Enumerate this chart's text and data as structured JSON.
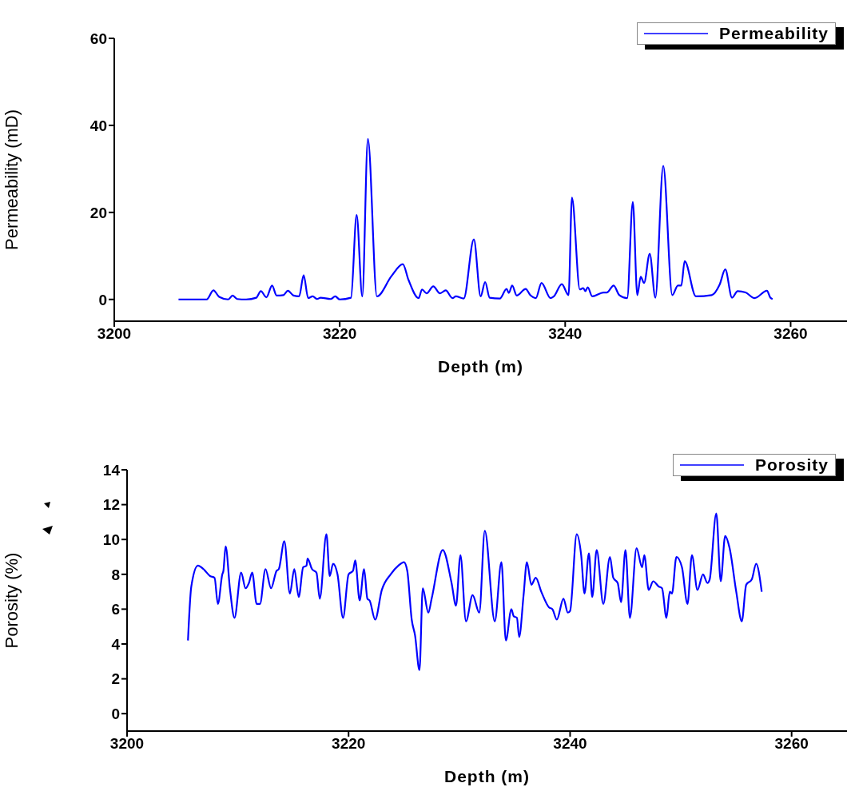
{
  "chart_data": [
    {
      "type": "line",
      "xlabel": "Depth (m)",
      "ylabel": "Permeability (mD)",
      "xlim": [
        3200,
        3265
      ],
      "xticks": [
        3200,
        3220,
        3240,
        3260
      ],
      "ylim": [
        -5,
        60
      ],
      "yticks": [
        0,
        20,
        40,
        60
      ],
      "legend": "top right",
      "x": [
        3205.7,
        3208.2,
        3208.8,
        3209.3,
        3210.1,
        3210.5,
        3210.9,
        3211.7,
        3212.6,
        3213.0,
        3213.5,
        3214.0,
        3214.4,
        3215.0,
        3215.4,
        3215.9,
        3216.4,
        3216.8,
        3217.2,
        3217.6,
        3218.0,
        3218.3,
        3219.2,
        3219.6,
        3220.0,
        3221.0,
        3221.5,
        3222.0,
        3222.5,
        3223.3,
        3224.6,
        3225.6,
        3226.1,
        3227.0,
        3227.3,
        3227.7,
        3228.3,
        3228.9,
        3229.4,
        3230.0,
        3230.3,
        3231.0,
        3231.9,
        3232.5,
        3232.9,
        3233.3,
        3234.2,
        3234.8,
        3235.0,
        3235.3,
        3235.7,
        3236.5,
        3236.9,
        3237.4,
        3237.9,
        3238.7,
        3239.0,
        3239.7,
        3240.3,
        3240.6,
        3241.3,
        3241.6,
        3241.8,
        3242.0,
        3242.4,
        3243.4,
        3243.7,
        3244.3,
        3244.8,
        3245.5,
        3246.0,
        3246.4,
        3246.7,
        3247.0,
        3247.5,
        3248.0,
        3248.7,
        3249.5,
        3250.0,
        3250.3,
        3250.6,
        3251.6,
        3253.0,
        3253.7,
        3254.2,
        3254.8,
        3255.3,
        3256.0,
        3256.8,
        3257.9,
        3258.2,
        3258.4
      ],
      "series": [
        {
          "name": "Permeability",
          "color": "#0000ff",
          "values": [
            0,
            0,
            2.1,
            0.6,
            0,
            0.9,
            0.1,
            0,
            0.4,
            1.9,
            0.5,
            3.2,
            0.9,
            1.0,
            2.0,
            0.9,
            0.7,
            5.6,
            0.3,
            0.7,
            0.1,
            0.4,
            0.1,
            0.7,
            0,
            0.4,
            19.4,
            0.7,
            36.9,
            0.7,
            5.4,
            8.1,
            4.5,
            0.3,
            2.3,
            1.4,
            3.0,
            1.4,
            2.1,
            0.3,
            0.7,
            0.2,
            13.8,
            0.7,
            4.0,
            0.4,
            0.2,
            2.4,
            1.5,
            3.2,
            0.9,
            2.4,
            1.0,
            0.3,
            3.8,
            0.3,
            0.7,
            3.5,
            1.0,
            23.4,
            2.3,
            2.6,
            1.9,
            2.8,
            0.7,
            1.6,
            1.6,
            3.2,
            1.0,
            0.3,
            22.4,
            1.0,
            5.2,
            3.8,
            10.5,
            0.4,
            30.7,
            1.0,
            3.2,
            3.2,
            8.8,
            0.7,
            1.0,
            3.4,
            6.9,
            0.4,
            1.9,
            1.6,
            0.3,
            2.0,
            0.4,
            0.1
          ]
        }
      ]
    },
    {
      "type": "line",
      "xlabel": "Depth (m)",
      "ylabel": "Porosity (%)",
      "xlim": [
        3200,
        3265
      ],
      "xticks": [
        3200,
        3220,
        3240,
        3260
      ],
      "ylim": [
        -1,
        14
      ],
      "yticks": [
        0,
        2,
        4,
        6,
        8,
        10,
        12,
        14
      ],
      "legend": "top right",
      "x": [
        3205.5,
        3205.8,
        3206.4,
        3206.9,
        3207.5,
        3207.9,
        3208.2,
        3208.6,
        3208.7,
        3208.9,
        3209.3,
        3209.7,
        3210.3,
        3210.7,
        3211.0,
        3211.3,
        3211.7,
        3212.0,
        3212.5,
        3213.0,
        3213.5,
        3213.7,
        3214.2,
        3214.7,
        3215.1,
        3215.5,
        3215.9,
        3216.2,
        3216.3,
        3216.7,
        3217.1,
        3217.4,
        3218.0,
        3218.3,
        3218.6,
        3219.0,
        3219.5,
        3220.0,
        3220.4,
        3220.6,
        3221.0,
        3221.4,
        3221.7,
        3221.9,
        3222.4,
        3223.0,
        3223.8,
        3224.5,
        3225.0,
        3225.3,
        3225.7,
        3226.0,
        3226.4,
        3226.7,
        3227.2,
        3227.5,
        3228.5,
        3229.3,
        3229.7,
        3230.1,
        3230.6,
        3231.2,
        3231.8,
        3232.3,
        3233.2,
        3233.8,
        3234.2,
        3234.7,
        3234.9,
        3235.2,
        3235.4,
        3235.8,
        3236.1,
        3236.5,
        3236.9,
        3237.4,
        3238.1,
        3238.4,
        3238.8,
        3239.4,
        3239.8,
        3240.0,
        3240.6,
        3241.0,
        3241.3,
        3241.7,
        3242.0,
        3242.4,
        3243.0,
        3243.6,
        3243.9,
        3244.3,
        3244.6,
        3245.0,
        3245.4,
        3246.0,
        3246.5,
        3246.7,
        3247.1,
        3247.5,
        3248.0,
        3248.3,
        3248.7,
        3249.0,
        3249.2,
        3249.6,
        3250.1,
        3250.6,
        3251.0,
        3251.5,
        3252.0,
        3252.4,
        3252.6,
        3253.2,
        3253.6,
        3254.0,
        3254.4,
        3255.0,
        3255.5,
        3255.9,
        3256.4,
        3256.8,
        3257.3
      ],
      "series": [
        {
          "name": "Porosity",
          "color": "#0000ff",
          "values": [
            4.2,
            7.3,
            8.5,
            8.3,
            7.9,
            7.8,
            6.3,
            8.0,
            8.2,
            9.6,
            7.1,
            5.5,
            8.1,
            7.2,
            7.5,
            8.1,
            6.3,
            6.3,
            8.3,
            7.2,
            8.2,
            8.3,
            9.9,
            6.9,
            8.3,
            6.7,
            8.4,
            8.5,
            8.9,
            8.3,
            8.1,
            6.6,
            10.3,
            7.9,
            8.6,
            8.0,
            5.5,
            8.0,
            8.2,
            8.8,
            6.5,
            8.3,
            6.6,
            6.5,
            5.4,
            7.1,
            8.0,
            8.5,
            8.7,
            8.2,
            5.4,
            4.5,
            2.5,
            7.2,
            5.8,
            6.6,
            9.4,
            7.5,
            6.2,
            9.1,
            5.3,
            6.8,
            5.8,
            10.5,
            5.3,
            8.7,
            4.2,
            6.0,
            5.6,
            5.5,
            4.4,
            6.8,
            8.7,
            7.4,
            7.8,
            7.0,
            6.1,
            6.0,
            5.4,
            6.6,
            5.8,
            5.9,
            10.3,
            9.1,
            6.9,
            9.2,
            6.7,
            9.4,
            6.3,
            9.0,
            7.8,
            7.5,
            6.4,
            9.4,
            5.5,
            9.5,
            8.4,
            9.1,
            7.1,
            7.6,
            7.3,
            7.2,
            5.5,
            7.0,
            6.9,
            9.0,
            8.4,
            6.3,
            9.1,
            7.1,
            8.0,
            7.5,
            7.7,
            11.5,
            7.6,
            10.2,
            9.5,
            7.0,
            5.3,
            7.4,
            7.7,
            8.6,
            7.0
          ]
        }
      ]
    }
  ]
}
